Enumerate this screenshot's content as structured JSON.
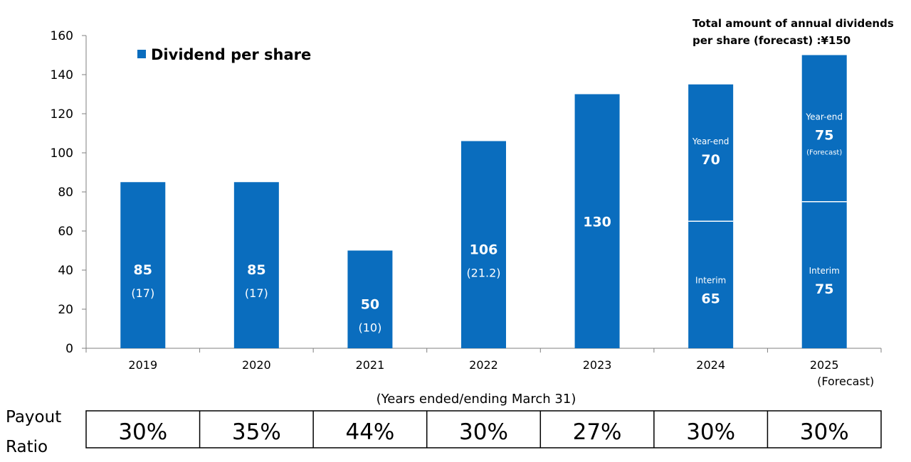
{
  "chart_data": {
    "type": "bar",
    "stacked": true,
    "categories": [
      "2019",
      "2020",
      "2021",
      "2022",
      "2023",
      "2024",
      "2025"
    ],
    "category_sublabels": [
      "",
      "",
      "",
      "",
      "",
      "",
      "(Forecast)"
    ],
    "series": [
      {
        "name": "Dividend per share",
        "values": [
          85,
          85,
          50,
          106,
          130,
          135,
          150
        ]
      }
    ],
    "segments": [
      {
        "category": "2024",
        "parts": [
          {
            "name": "Interim",
            "value": 65
          },
          {
            "name": "Year-end",
            "value": 70
          }
        ]
      },
      {
        "category": "2025",
        "parts": [
          {
            "name": "Interim",
            "value": 75
          },
          {
            "name": "Year-end",
            "value": 75,
            "note": "(Forecast)"
          }
        ]
      }
    ],
    "bar_labels": [
      "85",
      "85",
      "50",
      "106",
      "130",
      "",
      ""
    ],
    "bar_sublabels": [
      "(17)",
      "(17)",
      "(10)",
      "(21.2)",
      "",
      "",
      ""
    ],
    "bar_color": "#0A6DBE",
    "ylim": [
      0,
      160
    ],
    "yticks": [
      0,
      20,
      40,
      60,
      80,
      100,
      120,
      140,
      160
    ],
    "xlabel": "(Years ended/ending March 31)",
    "legend": {
      "label": "Dividend per share",
      "position": "top-left"
    },
    "annotation": {
      "line1": "Total amount of annual dividends",
      "line2": "per share (forecast) :¥150"
    },
    "payout_ratio": {
      "title_line1": "Payout",
      "title_line2": "Ratio",
      "values": [
        "30%",
        "35%",
        "44%",
        "30%",
        "27%",
        "30%",
        "30%"
      ]
    },
    "grid": false
  }
}
